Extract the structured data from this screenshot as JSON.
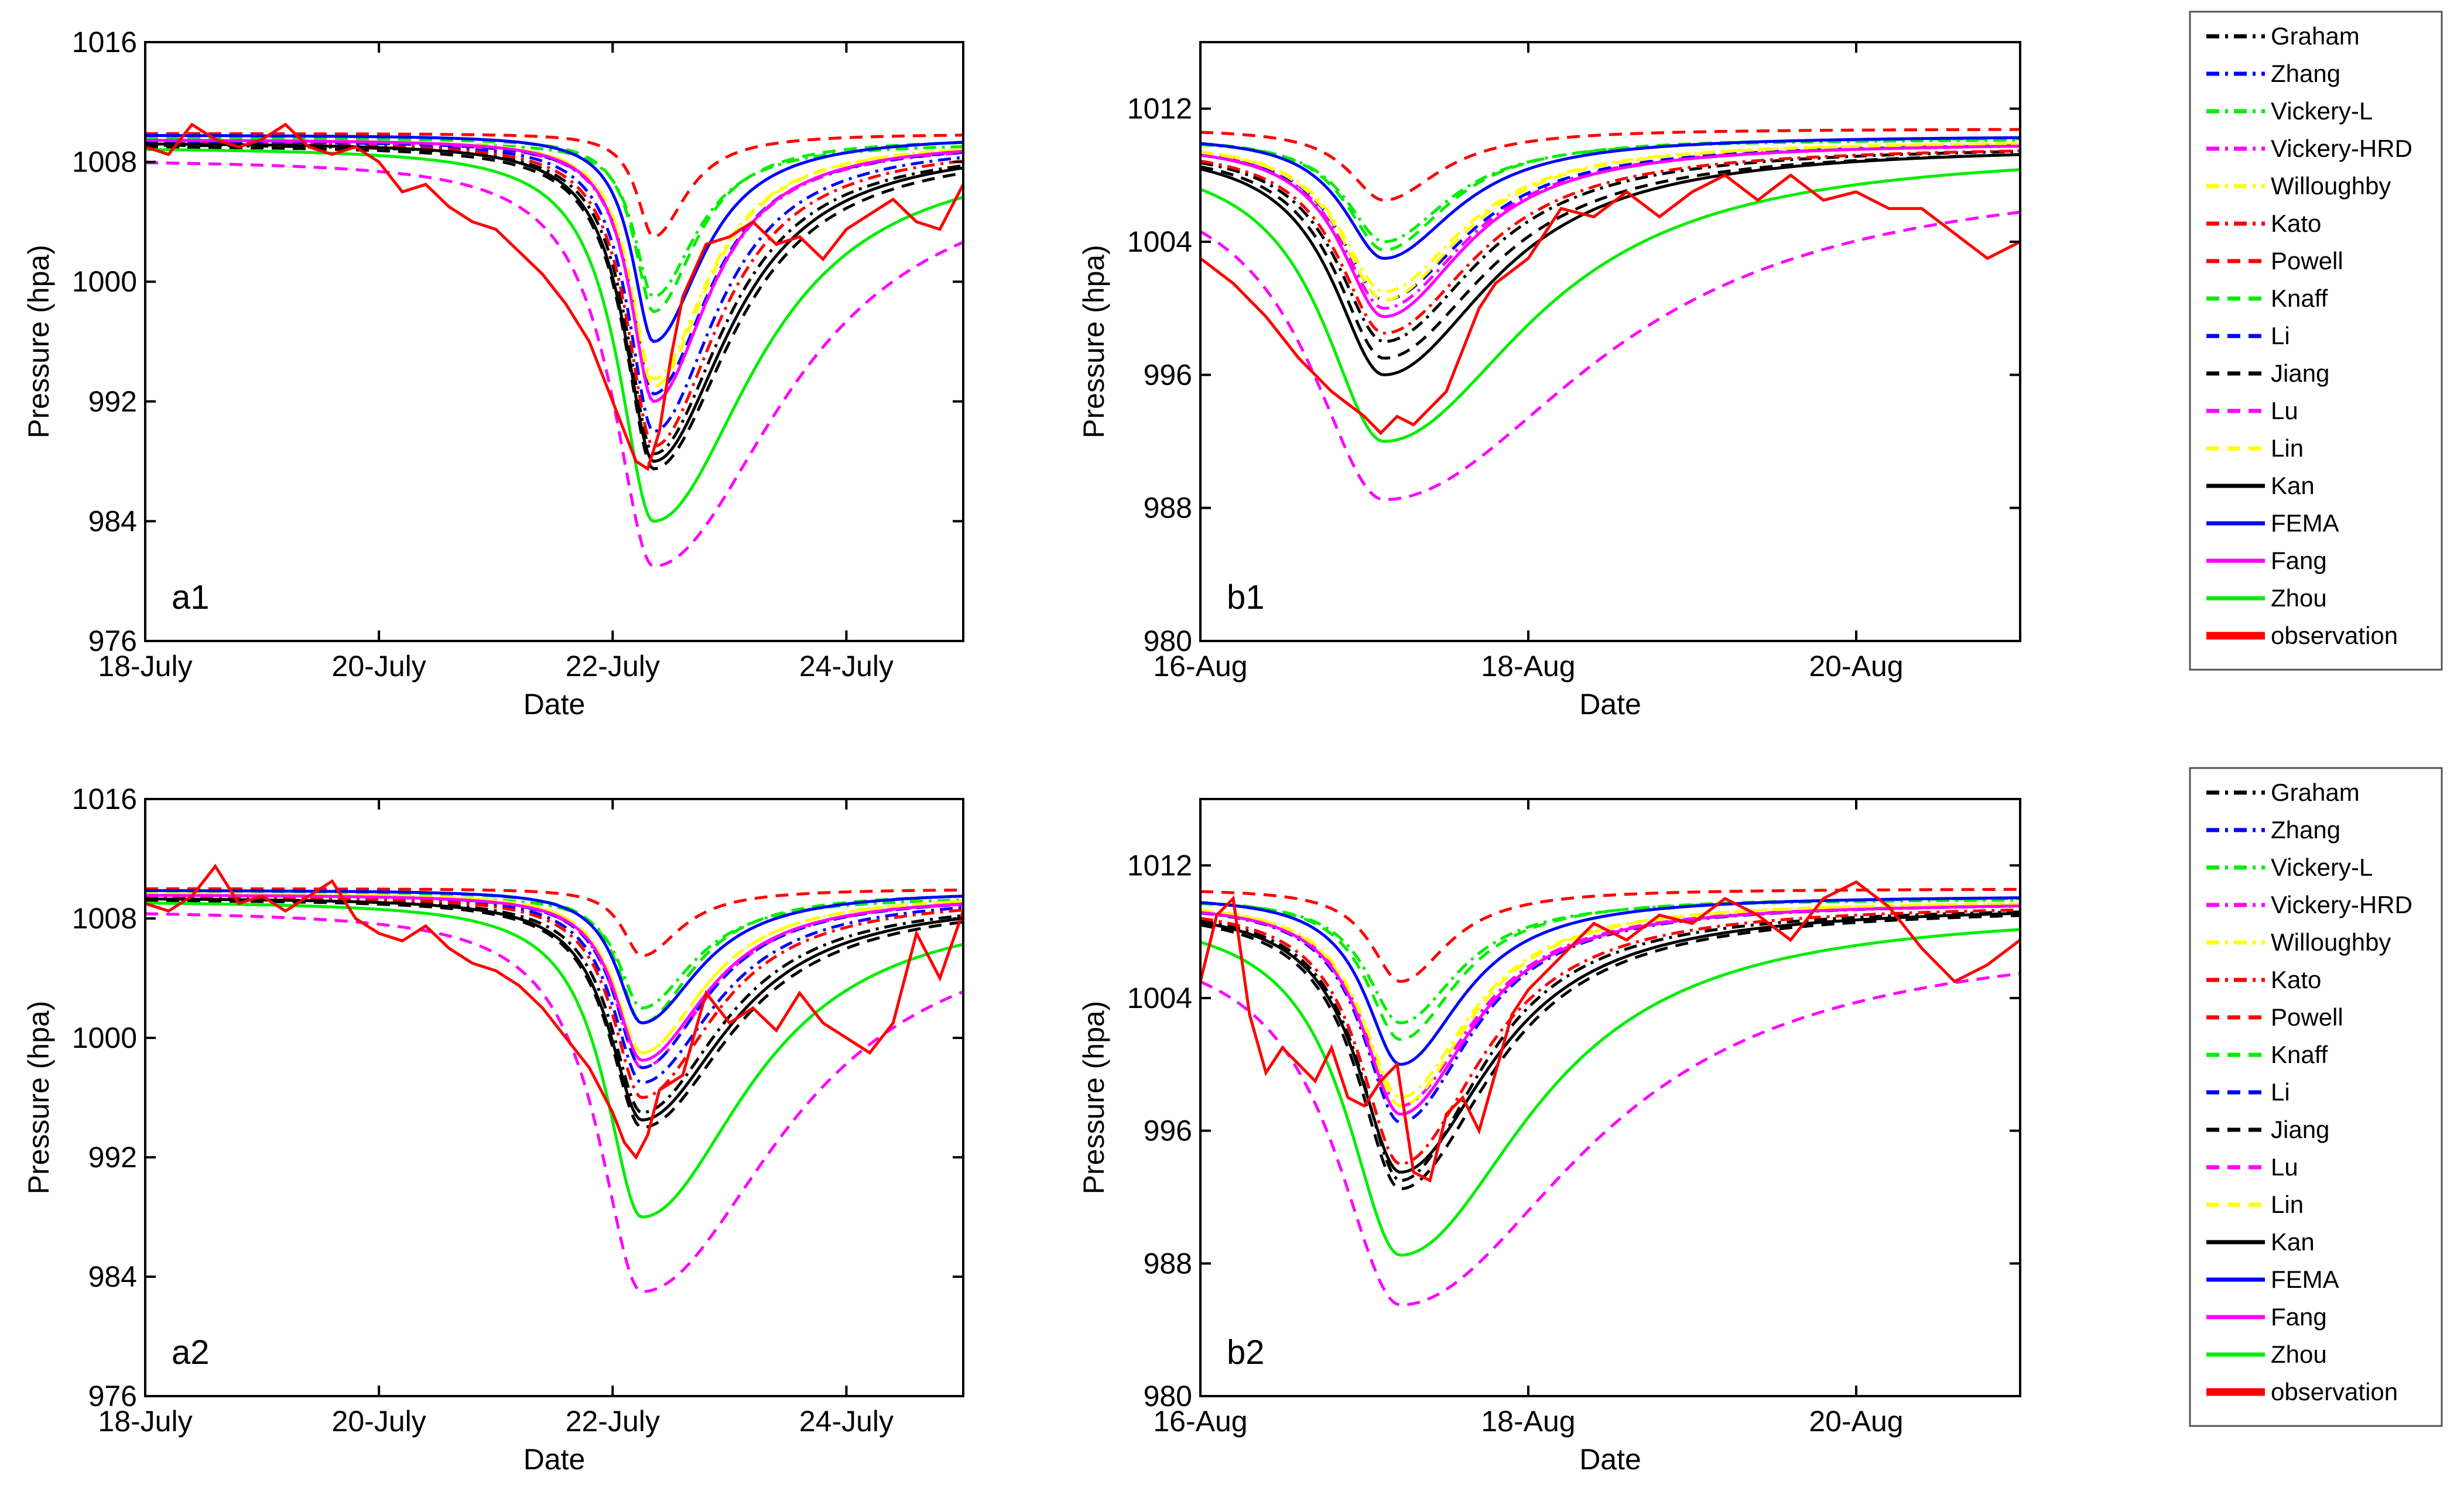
{
  "chart_data": [
    {
      "type": "line",
      "panel_label": "a1",
      "xlabel": "Date",
      "ylabel": "Pressure (hpa)",
      "ylim": [
        976,
        1016
      ],
      "yticks": [
        976,
        984,
        992,
        1000,
        1008,
        1016
      ],
      "ytick_labels": [
        "976",
        "984",
        "992",
        "1000",
        "1008",
        "1016"
      ],
      "xlim": [
        0,
        7
      ],
      "xticks": [
        0,
        2,
        4,
        6
      ],
      "xtick_labels": [
        "18-July",
        "20-July",
        "22-July",
        "24-July"
      ],
      "x_unit": "days since 18-July 00:00",
      "event_center": 4.35,
      "series": [
        {
          "name": "Graham",
          "base": 1009.2,
          "min": 988.5,
          "width": 0.28,
          "asym": 2.6
        },
        {
          "name": "Zhang",
          "base": 1009.4,
          "min": 990.0,
          "width": 0.26,
          "asym": 2.5
        },
        {
          "name": "Vickery-L",
          "base": 1009.3,
          "min": 999.0,
          "width": 0.2,
          "asym": 2.2
        },
        {
          "name": "Vickery-HRD",
          "base": 1009.4,
          "min": 992.0,
          "width": 0.24,
          "asym": 2.4
        },
        {
          "name": "Willoughby",
          "base": 1009.5,
          "min": 993.5,
          "width": 0.24,
          "asym": 2.3
        },
        {
          "name": "Kato",
          "base": 1009.3,
          "min": 989.0,
          "width": 0.27,
          "asym": 2.5
        },
        {
          "name": "Powell",
          "base": 1009.9,
          "min": 1003.0,
          "width": 0.17,
          "asym": 2.0
        },
        {
          "name": "Knaff",
          "base": 1009.6,
          "min": 998.0,
          "width": 0.2,
          "asym": 2.2
        },
        {
          "name": "Li",
          "base": 1009.4,
          "min": 992.5,
          "width": 0.24,
          "asym": 2.4
        },
        {
          "name": "Jiang",
          "base": 1009.1,
          "min": 987.5,
          "width": 0.3,
          "asym": 2.7
        },
        {
          "name": "Lu",
          "base": 1008.2,
          "min": 981.0,
          "width": 0.42,
          "asym": 3.2
        },
        {
          "name": "Lin",
          "base": 1009.5,
          "min": 993.0,
          "width": 0.24,
          "asym": 2.3
        },
        {
          "name": "Kan",
          "base": 1009.3,
          "min": 988.0,
          "width": 0.3,
          "asym": 2.6
        },
        {
          "name": "FEMA",
          "base": 1009.8,
          "min": 996.0,
          "width": 0.22,
          "asym": 2.3
        },
        {
          "name": "Fang",
          "base": 1009.5,
          "min": 992.0,
          "width": 0.24,
          "asym": 2.4
        },
        {
          "name": "Zhou",
          "base": 1009.0,
          "min": 984.0,
          "width": 0.36,
          "asym": 2.9
        }
      ],
      "observation": {
        "x": [
          0,
          0.2,
          0.4,
          0.6,
          0.8,
          1.0,
          1.2,
          1.4,
          1.6,
          1.8,
          2.0,
          2.2,
          2.4,
          2.6,
          2.8,
          3.0,
          3.2,
          3.4,
          3.6,
          3.8,
          4.0,
          4.1,
          4.2,
          4.3,
          4.4,
          4.5,
          4.6,
          4.8,
          5.0,
          5.2,
          5.4,
          5.6,
          5.8,
          6.0,
          6.2,
          6.4,
          6.6,
          6.8,
          7.0
        ],
        "y": [
          1009,
          1008.5,
          1010.5,
          1009.5,
          1009,
          1009.5,
          1010.5,
          1009,
          1008.5,
          1009,
          1008,
          1006,
          1006.5,
          1005,
          1004,
          1003.5,
          1002,
          1000.5,
          998.5,
          996,
          992,
          990,
          988,
          987.5,
          990,
          995,
          999,
          1002.5,
          1003,
          1004,
          1002.5,
          1003,
          1001.5,
          1003.5,
          1004.5,
          1005.5,
          1004,
          1003.5,
          1006.5
        ]
      }
    },
    {
      "type": "line",
      "panel_label": "b1",
      "xlabel": "Date",
      "ylabel": "Pressure (hpa)",
      "ylim": [
        980,
        1016
      ],
      "yticks": [
        980,
        988,
        996,
        1004,
        1012
      ],
      "ytick_labels": [
        "980",
        "988",
        "996",
        "1004",
        "1012"
      ],
      "xlim": [
        0,
        5
      ],
      "xticks": [
        0,
        2,
        4
      ],
      "xtick_labels": [
        "16-Aug",
        "18-Aug",
        "20-Aug"
      ],
      "x_unit": "days since 16-Aug 00:00",
      "event_center": 1.12,
      "series": [
        {
          "name": "Graham",
          "base": 1009.8,
          "min": 998.0,
          "width": 0.35,
          "asym": 2.0
        },
        {
          "name": "Zhang",
          "base": 1010.0,
          "min": 999.5,
          "width": 0.32,
          "asym": 1.9
        },
        {
          "name": "Vickery-L",
          "base": 1010.2,
          "min": 1004.0,
          "width": 0.28,
          "asym": 1.7
        },
        {
          "name": "Vickery-HRD",
          "base": 1010.0,
          "min": 1000.0,
          "width": 0.32,
          "asym": 1.9
        },
        {
          "name": "Willoughby",
          "base": 1010.1,
          "min": 1001.0,
          "width": 0.32,
          "asym": 1.8
        },
        {
          "name": "Kato",
          "base": 1009.8,
          "min": 998.5,
          "width": 0.34,
          "asym": 2.0
        },
        {
          "name": "Powell",
          "base": 1010.8,
          "min": 1006.5,
          "width": 0.26,
          "asym": 1.6
        },
        {
          "name": "Knaff",
          "base": 1010.3,
          "min": 1003.5,
          "width": 0.28,
          "asym": 1.7
        },
        {
          "name": "Li",
          "base": 1010.0,
          "min": 1000.5,
          "width": 0.32,
          "asym": 1.9
        },
        {
          "name": "Jiang",
          "base": 1009.7,
          "min": 997.0,
          "width": 0.36,
          "asym": 2.1
        },
        {
          "name": "Lu",
          "base": 1008.5,
          "min": 988.5,
          "width": 0.55,
          "asym": 2.8
        },
        {
          "name": "Lin",
          "base": 1010.1,
          "min": 1000.5,
          "width": 0.32,
          "asym": 1.8
        },
        {
          "name": "Kan",
          "base": 1009.8,
          "min": 996.0,
          "width": 0.38,
          "asym": 2.1
        },
        {
          "name": "FEMA",
          "base": 1010.4,
          "min": 1003.0,
          "width": 0.3,
          "asym": 1.8
        },
        {
          "name": "Fang",
          "base": 1010.0,
          "min": 999.5,
          "width": 0.32,
          "asym": 1.9
        },
        {
          "name": "Zhou",
          "base": 1009.6,
          "min": 992.0,
          "width": 0.45,
          "asym": 2.4
        }
      ],
      "observation": {
        "x": [
          0,
          0.2,
          0.4,
          0.6,
          0.8,
          1.0,
          1.1,
          1.2,
          1.3,
          1.4,
          1.5,
          1.6,
          1.7,
          1.8,
          2.0,
          2.2,
          2.4,
          2.6,
          2.8,
          3.0,
          3.2,
          3.4,
          3.6,
          3.8,
          4.0,
          4.2,
          4.4,
          4.6,
          4.8,
          5.0
        ],
        "y": [
          1003,
          1001.5,
          999.5,
          997,
          995,
          993.5,
          992.5,
          993.5,
          993,
          994,
          995,
          997.5,
          1000,
          1001.5,
          1003,
          1006,
          1005.5,
          1007,
          1005.5,
          1007,
          1008,
          1006.5,
          1008,
          1006.5,
          1007,
          1006,
          1006,
          1004.5,
          1003,
          1004
        ]
      }
    },
    {
      "type": "line",
      "panel_label": "a2",
      "xlabel": "Date",
      "ylabel": "Pressure (hpa)",
      "ylim": [
        976,
        1016
      ],
      "yticks": [
        976,
        984,
        992,
        1000,
        1008,
        1016
      ],
      "ytick_labels": [
        "976",
        "984",
        "992",
        "1000",
        "1008",
        "1016"
      ],
      "xlim": [
        0,
        7
      ],
      "xticks": [
        0,
        2,
        4,
        6
      ],
      "xtick_labels": [
        "18-July",
        "20-July",
        "22-July",
        "24-July"
      ],
      "x_unit": "days since 18-July 00:00",
      "event_center": 4.25,
      "series": [
        {
          "name": "Graham",
          "base": 1009.4,
          "min": 995.0,
          "width": 0.32,
          "asym": 2.6
        },
        {
          "name": "Zhang",
          "base": 1009.6,
          "min": 997.0,
          "width": 0.3,
          "asym": 2.5
        },
        {
          "name": "Vickery-L",
          "base": 1009.5,
          "min": 1002.0,
          "width": 0.24,
          "asym": 2.2
        },
        {
          "name": "Vickery-HRD",
          "base": 1009.6,
          "min": 998.0,
          "width": 0.28,
          "asym": 2.4
        },
        {
          "name": "Willoughby",
          "base": 1009.7,
          "min": 999.0,
          "width": 0.28,
          "asym": 2.3
        },
        {
          "name": "Kato",
          "base": 1009.5,
          "min": 996.0,
          "width": 0.3,
          "asym": 2.5
        },
        {
          "name": "Powell",
          "base": 1010.0,
          "min": 1005.5,
          "width": 0.2,
          "asym": 2.0
        },
        {
          "name": "Knaff",
          "base": 1009.8,
          "min": 1001.0,
          "width": 0.24,
          "asym": 2.2
        },
        {
          "name": "Li",
          "base": 1009.6,
          "min": 998.0,
          "width": 0.28,
          "asym": 2.4
        },
        {
          "name": "Jiang",
          "base": 1009.3,
          "min": 994.0,
          "width": 0.34,
          "asym": 2.7
        },
        {
          "name": "Lu",
          "base": 1008.6,
          "min": 983.0,
          "width": 0.45,
          "asym": 3.2
        },
        {
          "name": "Lin",
          "base": 1009.7,
          "min": 999.0,
          "width": 0.28,
          "asym": 2.3
        },
        {
          "name": "Kan",
          "base": 1009.4,
          "min": 994.5,
          "width": 0.34,
          "asym": 2.6
        },
        {
          "name": "FEMA",
          "base": 1009.9,
          "min": 1001.0,
          "width": 0.26,
          "asym": 2.3
        },
        {
          "name": "Fang",
          "base": 1009.6,
          "min": 998.5,
          "width": 0.28,
          "asym": 2.4
        },
        {
          "name": "Zhou",
          "base": 1009.2,
          "min": 988.0,
          "width": 0.38,
          "asym": 2.9
        }
      ],
      "observation": {
        "x": [
          0,
          0.2,
          0.4,
          0.6,
          0.8,
          1.0,
          1.2,
          1.4,
          1.6,
          1.8,
          2.0,
          2.2,
          2.4,
          2.6,
          2.8,
          3.0,
          3.2,
          3.4,
          3.6,
          3.8,
          4.0,
          4.1,
          4.2,
          4.3,
          4.4,
          4.6,
          4.8,
          5.0,
          5.2,
          5.4,
          5.6,
          5.8,
          6.0,
          6.2,
          6.4,
          6.6,
          6.8,
          7.0
        ],
        "y": [
          1009,
          1008.5,
          1009.5,
          1011.5,
          1009,
          1009.5,
          1008.5,
          1009.5,
          1010.5,
          1008,
          1007,
          1006.5,
          1007.5,
          1006,
          1005,
          1004.5,
          1003.5,
          1002,
          1000,
          998,
          995,
          993,
          992,
          993.5,
          996.5,
          997.5,
          1003,
          1001,
          1002,
          1000.5,
          1003,
          1001,
          1000,
          999,
          1001,
          1007,
          1004,
          1008.5
        ]
      }
    },
    {
      "type": "line",
      "panel_label": "b2",
      "xlabel": "Date",
      "ylabel": "Pressure (hpa)",
      "ylim": [
        980,
        1016
      ],
      "yticks": [
        980,
        988,
        996,
        1004,
        1012
      ],
      "ytick_labels": [
        "980",
        "988",
        "996",
        "1004",
        "1012"
      ],
      "xlim": [
        0,
        5
      ],
      "xticks": [
        0,
        2,
        4
      ],
      "xtick_labels": [
        "16-Aug",
        "18-Aug",
        "20-Aug"
      ],
      "x_unit": "days since 16-Aug 00:00",
      "event_center": 1.22,
      "series": [
        {
          "name": "Graham",
          "base": 1009.6,
          "min": 993.0,
          "width": 0.3,
          "asym": 2.0
        },
        {
          "name": "Zhang",
          "base": 1009.8,
          "min": 996.5,
          "width": 0.28,
          "asym": 1.9
        },
        {
          "name": "Vickery-L",
          "base": 1010.0,
          "min": 1002.5,
          "width": 0.25,
          "asym": 1.7
        },
        {
          "name": "Vickery-HRD",
          "base": 1009.8,
          "min": 997.5,
          "width": 0.28,
          "asym": 1.9
        },
        {
          "name": "Willoughby",
          "base": 1009.9,
          "min": 998.0,
          "width": 0.28,
          "asym": 1.8
        },
        {
          "name": "Kato",
          "base": 1009.7,
          "min": 994.0,
          "width": 0.3,
          "asym": 2.0
        },
        {
          "name": "Powell",
          "base": 1010.6,
          "min": 1005.0,
          "width": 0.22,
          "asym": 1.6
        },
        {
          "name": "Knaff",
          "base": 1010.1,
          "min": 1001.5,
          "width": 0.25,
          "asym": 1.7
        },
        {
          "name": "Li",
          "base": 1009.8,
          "min": 997.0,
          "width": 0.28,
          "asym": 1.9
        },
        {
          "name": "Jiang",
          "base": 1009.5,
          "min": 992.5,
          "width": 0.32,
          "asym": 2.1
        },
        {
          "name": "Lu",
          "base": 1008.0,
          "min": 985.5,
          "width": 0.48,
          "asym": 2.8
        },
        {
          "name": "Lin",
          "base": 1009.9,
          "min": 997.5,
          "width": 0.28,
          "asym": 1.8
        },
        {
          "name": "Kan",
          "base": 1009.6,
          "min": 993.5,
          "width": 0.32,
          "asym": 2.1
        },
        {
          "name": "FEMA",
          "base": 1010.2,
          "min": 1000.0,
          "width": 0.26,
          "asym": 1.8
        },
        {
          "name": "Fang",
          "base": 1009.8,
          "min": 997.0,
          "width": 0.28,
          "asym": 1.9
        },
        {
          "name": "Zhou",
          "base": 1009.4,
          "min": 988.5,
          "width": 0.4,
          "asym": 2.4
        }
      ],
      "observation": {
        "x": [
          0,
          0.1,
          0.2,
          0.3,
          0.4,
          0.5,
          0.6,
          0.7,
          0.8,
          0.9,
          1.0,
          1.1,
          1.2,
          1.3,
          1.4,
          1.5,
          1.6,
          1.7,
          1.8,
          1.9,
          2.0,
          2.2,
          2.4,
          2.6,
          2.8,
          3.0,
          3.2,
          3.4,
          3.6,
          3.8,
          4.0,
          4.2,
          4.4,
          4.6,
          4.8,
          5.0
        ],
        "y": [
          1005,
          1009,
          1010,
          1003,
          999.5,
          1001,
          1000,
          999,
          1001,
          998,
          997.5,
          999,
          1000,
          993.5,
          993,
          997,
          998,
          996,
          999.5,
          1003,
          1004.5,
          1006.5,
          1008.5,
          1007.5,
          1009,
          1008.5,
          1010,
          1009,
          1007.5,
          1010,
          1011,
          1009.5,
          1007,
          1005,
          1006,
          1007.5
        ]
      }
    }
  ],
  "legend": {
    "entries": [
      {
        "label": "Graham",
        "color": "#000000",
        "dash": "dashdot"
      },
      {
        "label": "Zhang",
        "color": "#0000ff",
        "dash": "dashdot"
      },
      {
        "label": "Vickery-L",
        "color": "#00ee00",
        "dash": "dashdot"
      },
      {
        "label": "Vickery-HRD",
        "color": "#ff00ff",
        "dash": "dashdot"
      },
      {
        "label": "Willoughby",
        "color": "#ffff00",
        "dash": "dashdot"
      },
      {
        "label": "Kato",
        "color": "#ff0000",
        "dash": "dashdot"
      },
      {
        "label": "Powell",
        "color": "#ff0000",
        "dash": "dashed"
      },
      {
        "label": "Knaff",
        "color": "#00ee00",
        "dash": "dashed"
      },
      {
        "label": "Li",
        "color": "#0000ff",
        "dash": "dashed"
      },
      {
        "label": "Jiang",
        "color": "#000000",
        "dash": "dashed"
      },
      {
        "label": "Lu",
        "color": "#ff00ff",
        "dash": "dashed"
      },
      {
        "label": "Lin",
        "color": "#ffff00",
        "dash": "dashed"
      },
      {
        "label": "Kan",
        "color": "#000000",
        "dash": "solid"
      },
      {
        "label": "FEMA",
        "color": "#0000ff",
        "dash": "solid"
      },
      {
        "label": "Fang",
        "color": "#ff00ff",
        "dash": "solid"
      },
      {
        "label": "Zhou",
        "color": "#00ee00",
        "dash": "solid"
      },
      {
        "label": "observation",
        "color": "#ff0000",
        "dash": "solid-thick"
      }
    ]
  }
}
